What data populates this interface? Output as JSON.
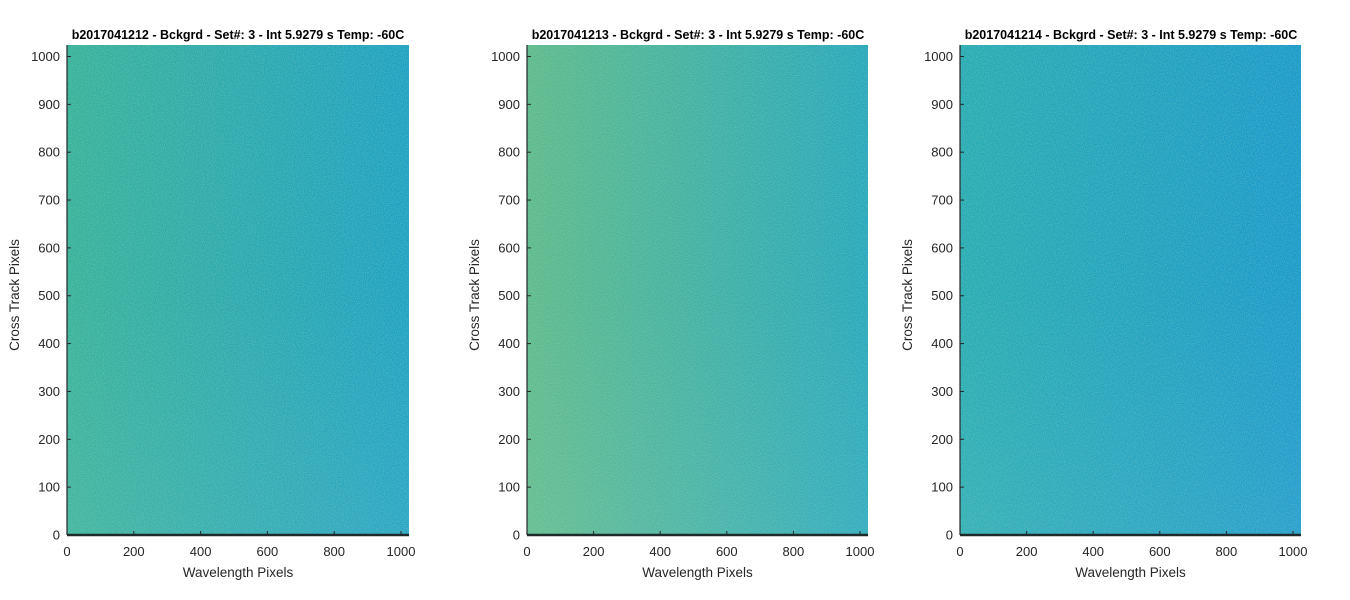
{
  "chart_data": [
    {
      "type": "heatmap",
      "title": "b2017041212 - Bckgrd - Set#: 3 - Int 5.9279 s Temp: -60C",
      "xlabel": "Wavelength Pixels",
      "ylabel": "Cross Track Pixels",
      "xlim": [
        0,
        1024
      ],
      "ylim": [
        0,
        1024
      ],
      "xticks": [
        0,
        200,
        400,
        600,
        800,
        1000
      ],
      "yticks": [
        0,
        100,
        200,
        300,
        400,
        500,
        600,
        700,
        800,
        900,
        1000
      ],
      "colormap": "parula",
      "colors": {
        "left_edge": "#35b09a",
        "right_edge": "#1a9fc4"
      }
    },
    {
      "type": "heatmap",
      "title": "b2017041213 - Bckgrd - Set#: 3 - Int 5.9279 s Temp: -60C",
      "xlabel": "Wavelength Pixels",
      "ylabel": "Cross Track Pixels",
      "xlim": [
        0,
        1024
      ],
      "ylim": [
        0,
        1024
      ],
      "xticks": [
        0,
        200,
        400,
        600,
        800,
        1000
      ],
      "yticks": [
        0,
        100,
        200,
        300,
        400,
        500,
        600,
        700,
        800,
        900,
        1000
      ],
      "colormap": "parula",
      "colors": {
        "left_edge": "#5cb98a",
        "right_edge": "#23a6bd"
      }
    },
    {
      "type": "heatmap",
      "title": "b2017041214 - Bckgrd - Set#: 3 - Int 5.9279 s Temp: -60C",
      "xlabel": "Wavelength Pixels",
      "ylabel": "Cross Track Pixels",
      "xlim": [
        0,
        1024
      ],
      "ylim": [
        0,
        1024
      ],
      "xticks": [
        0,
        200,
        400,
        600,
        800,
        1000
      ],
      "yticks": [
        0,
        100,
        200,
        300,
        400,
        500,
        600,
        700,
        800,
        900,
        1000
      ],
      "colormap": "parula",
      "colors": {
        "left_edge": "#24aab3",
        "right_edge": "#1697cc"
      }
    }
  ]
}
